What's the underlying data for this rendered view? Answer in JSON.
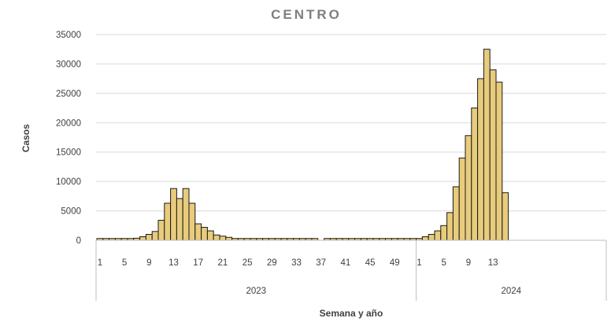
{
  "chart_data": {
    "type": "bar",
    "title": "CENTRO",
    "xlabel": "Semana y año",
    "ylabel": "Casos",
    "ylim": [
      0,
      35000
    ],
    "y_ticks": [
      "0",
      "5000",
      "10000",
      "15000",
      "20000",
      "25000",
      "30000",
      "35000"
    ],
    "grid": true,
    "legend": "none",
    "colors": {
      "bar_fill": "#e8cc7c",
      "bar_stroke": "#1a1a1a",
      "grid": "#d9d9d9"
    },
    "groups": [
      {
        "year": "2023",
        "weeks": [
          1,
          2,
          3,
          4,
          5,
          6,
          7,
          8,
          9,
          10,
          11,
          12,
          13,
          14,
          15,
          16,
          17,
          18,
          19,
          20,
          21,
          22,
          23,
          24,
          25,
          26,
          27,
          28,
          29,
          30,
          31,
          32,
          33,
          34,
          35,
          36,
          37,
          38,
          39,
          40,
          41,
          42,
          43,
          44,
          45,
          46,
          47,
          48,
          49,
          50,
          51,
          52
        ],
        "tick_labels": [
          "1",
          "5",
          "9",
          "13",
          "17",
          "21",
          "25",
          "29",
          "33",
          "37",
          "41",
          "45",
          "49"
        ],
        "values": [
          300,
          300,
          300,
          300,
          300,
          300,
          350,
          600,
          1000,
          1500,
          3400,
          6300,
          8800,
          7100,
          8800,
          6300,
          2800,
          2200,
          1600,
          900,
          700,
          500,
          300,
          300,
          300,
          300,
          300,
          300,
          300,
          300,
          300,
          300,
          300,
          300,
          300,
          300,
          0,
          300,
          300,
          300,
          300,
          300,
          300,
          300,
          300,
          300,
          300,
          300,
          300,
          300,
          300,
          300
        ]
      },
      {
        "year": "2024",
        "weeks": [
          1,
          2,
          3,
          4,
          5,
          6,
          7,
          8,
          9,
          10,
          11,
          12,
          13,
          14,
          15
        ],
        "tick_labels": [
          "1",
          "5",
          "9",
          "13"
        ],
        "values": [
          300,
          600,
          1000,
          1600,
          2500,
          4700,
          9100,
          14000,
          17800,
          22500,
          27500,
          32500,
          29000,
          26900,
          8100
        ]
      }
    ]
  }
}
